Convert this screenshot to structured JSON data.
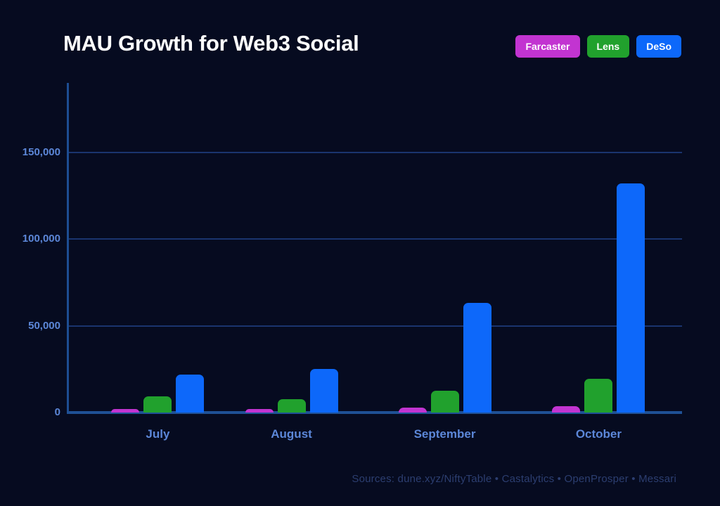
{
  "title": "MAU Growth for Web3 Social",
  "legend": [
    {
      "label": "Farcaster",
      "color": "#c234d1"
    },
    {
      "label": "Lens",
      "color": "#21a12d"
    },
    {
      "label": "DeSo",
      "color": "#0d68fa"
    }
  ],
  "footer": "Sources: dune.xyz/NiftyTable • Castalytics • OpenProsper • Messari",
  "colors": {
    "background": "#060b20",
    "axis": "#1d4d92",
    "gridline": "#1a346e",
    "tick_label": "#5c87d8",
    "category_label": "#5c87d8",
    "footer_text": "#2c3e70",
    "title_text": "#ffffff"
  },
  "chart_data": {
    "type": "bar",
    "title": "MAU Growth for Web3 Social",
    "categories": [
      "July",
      "August",
      "September",
      "October"
    ],
    "series": [
      {
        "name": "Farcaster",
        "color": "#c234d1",
        "values": [
          2000,
          2000,
          2800,
          3600
        ]
      },
      {
        "name": "Lens",
        "color": "#21a12d",
        "values": [
          9500,
          7500,
          12500,
          19500
        ]
      },
      {
        "name": "DeSo",
        "color": "#0d68fa",
        "values": [
          22000,
          25000,
          63000,
          132000
        ]
      }
    ],
    "xlabel": "",
    "ylabel": "",
    "ylim": [
      0,
      190000
    ],
    "yticks": [
      0,
      50000,
      100000,
      150000
    ],
    "ytick_labels": [
      "0",
      "50,000",
      "100,000",
      "150,000"
    ],
    "grid": true,
    "legend_position": "top-right"
  }
}
